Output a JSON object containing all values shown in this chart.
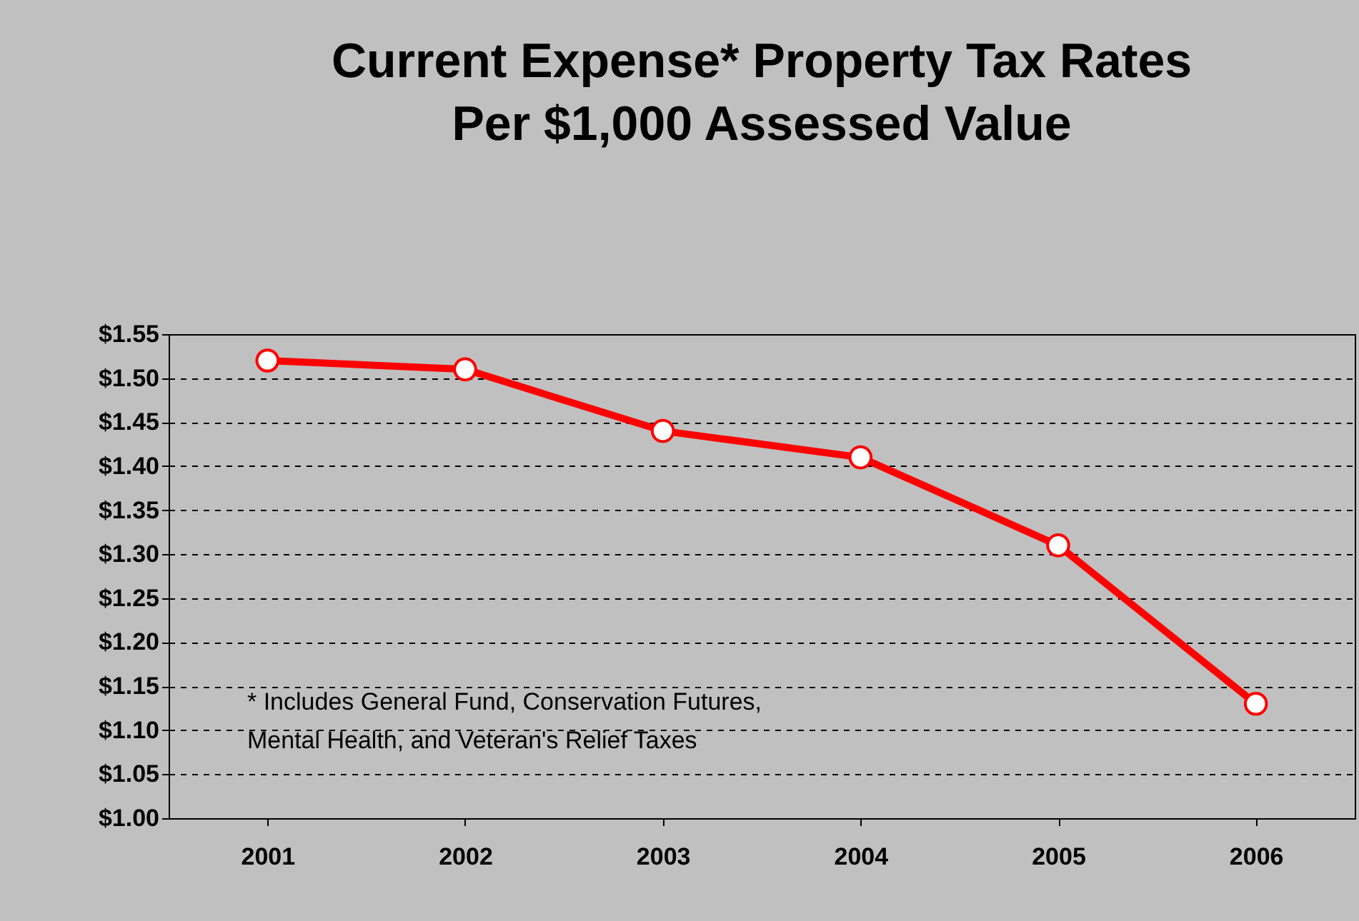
{
  "chart_data": {
    "type": "line",
    "title": "Current Expense* Property Tax Rates\nPer $1,000 Assessed Value",
    "categories": [
      "2001",
      "2002",
      "2003",
      "2004",
      "2005",
      "2006"
    ],
    "series": [
      {
        "color": "#ff0000",
        "values": [
          1.52,
          1.51,
          1.44,
          1.41,
          1.31,
          1.13
        ]
      }
    ],
    "ylim": [
      1.0,
      1.55
    ],
    "yticks": [
      {
        "value": 1.0,
        "label": "$1.00"
      },
      {
        "value": 1.05,
        "label": "$1.05"
      },
      {
        "value": 1.1,
        "label": "$1.10"
      },
      {
        "value": 1.15,
        "label": "$1.15"
      },
      {
        "value": 1.2,
        "label": "$1.20"
      },
      {
        "value": 1.25,
        "label": "$1.25"
      },
      {
        "value": 1.3,
        "label": "$1.30"
      },
      {
        "value": 1.35,
        "label": "$1.35"
      },
      {
        "value": 1.4,
        "label": "$1.40"
      },
      {
        "value": 1.45,
        "label": "$1.45"
      },
      {
        "value": 1.5,
        "label": "$1.50"
      },
      {
        "value": 1.55,
        "label": "$1.55"
      }
    ],
    "grid": "y",
    "marker": "circle",
    "line_style": "solid",
    "annotations": [
      "* Includes General Fund, Conservation Futures,\nMental Health, and Veteran's Relief Taxes"
    ]
  }
}
